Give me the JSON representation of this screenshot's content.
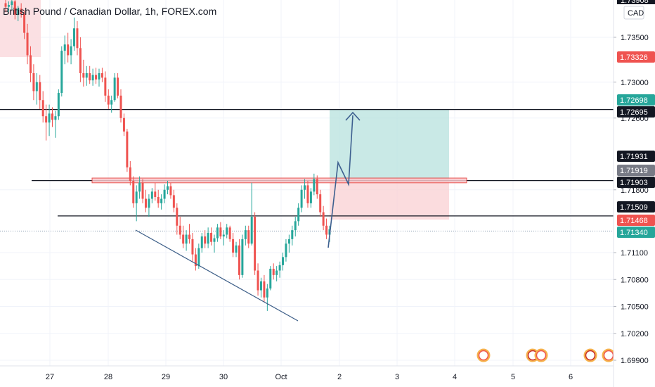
{
  "header": {
    "symbol_title": "British Pound / Canadian Dollar, 1h, FOREX.com",
    "currency": "CAD"
  },
  "colors": {
    "up": "#26a69a",
    "down": "#ef5350",
    "black": "#131722",
    "blue": "#3d5f8f",
    "target_zone": "#b7e1dd",
    "stop_zone": "#f9d0d3"
  },
  "price_axis": {
    "ticks": [
      "1.73500",
      "1.73000",
      "1.72600",
      "1.71800",
      "1.71100",
      "1.70800",
      "1.70500",
      "1.70200",
      "1.69900"
    ],
    "top_partial": "1.73908",
    "badges": [
      {
        "label": "1.73326",
        "color": "#ef5350"
      },
      {
        "label": "1.72698",
        "color": "#26a69a"
      },
      {
        "label": "1.72695",
        "color": "#131722"
      },
      {
        "label": "1.71931",
        "color": "#131722"
      },
      {
        "label": "1.71919",
        "color": "#787b86"
      },
      {
        "label": "1.71903",
        "color": "#131722"
      },
      {
        "label": "1.71509",
        "color": "#131722"
      },
      {
        "label": "1.71468",
        "color": "#ef5350"
      },
      {
        "label": "1.71340",
        "color": "#26a69a"
      }
    ]
  },
  "time_axis": {
    "labels": [
      "27",
      "28",
      "29",
      "30",
      "Oct",
      "2",
      "3",
      "4",
      "5",
      "6"
    ]
  },
  "chart_data": {
    "type": "candlestick",
    "title": "British Pound / Canadian Dollar, 1h, FOREX.com",
    "y_unit": "CAD",
    "ylim": [
      1.6985,
      1.7394
    ],
    "x_labels": [
      "27",
      "28",
      "29",
      "30",
      "Oct",
      "2",
      "3",
      "4",
      "5",
      "6"
    ],
    "candles": [
      [
        1.7388,
        1.7392,
        1.7378,
        1.7384
      ],
      [
        1.7384,
        1.739,
        1.7378,
        1.7386
      ],
      [
        1.7386,
        1.7394,
        1.738,
        1.739
      ],
      [
        1.739,
        1.7394,
        1.737,
        1.7375
      ],
      [
        1.7375,
        1.7385,
        1.7368,
        1.7382
      ],
      [
        1.7382,
        1.7388,
        1.7372,
        1.7376
      ],
      [
        1.7376,
        1.738,
        1.7348,
        1.7355
      ],
      [
        1.7355,
        1.7365,
        1.732,
        1.733
      ],
      [
        1.733,
        1.734,
        1.73,
        1.731
      ],
      [
        1.731,
        1.732,
        1.728,
        1.729
      ],
      [
        1.729,
        1.731,
        1.7275,
        1.73
      ],
      [
        1.73,
        1.7308,
        1.727,
        1.728
      ],
      [
        1.728,
        1.729,
        1.7255,
        1.7262
      ],
      [
        1.7262,
        1.7275,
        1.7235,
        1.7255
      ],
      [
        1.7255,
        1.7275,
        1.724,
        1.7265
      ],
      [
        1.7265,
        1.7272,
        1.725,
        1.7258
      ],
      [
        1.7258,
        1.7268,
        1.7238,
        1.7262
      ],
      [
        1.7262,
        1.7292,
        1.7258,
        1.7288
      ],
      [
        1.7288,
        1.734,
        1.7284,
        1.7335
      ],
      [
        1.7335,
        1.7352,
        1.732,
        1.7342
      ],
      [
        1.7342,
        1.7355,
        1.7322,
        1.733
      ],
      [
        1.733,
        1.7348,
        1.732,
        1.734
      ],
      [
        1.734,
        1.7372,
        1.7335,
        1.736
      ],
      [
        1.736,
        1.7368,
        1.733,
        1.7338
      ],
      [
        1.7338,
        1.735,
        1.73,
        1.731
      ],
      [
        1.731,
        1.7325,
        1.7295,
        1.7305
      ],
      [
        1.7305,
        1.7318,
        1.7296,
        1.731
      ],
      [
        1.731,
        1.7318,
        1.7298,
        1.7302
      ],
      [
        1.7302,
        1.7315,
        1.7296,
        1.7308
      ],
      [
        1.7308,
        1.7316,
        1.7298,
        1.7303
      ],
      [
        1.7303,
        1.7315,
        1.7295,
        1.731
      ],
      [
        1.731,
        1.7316,
        1.73,
        1.7305
      ],
      [
        1.7305,
        1.7312,
        1.7278,
        1.7285
      ],
      [
        1.7285,
        1.7292,
        1.727,
        1.7275
      ],
      [
        1.7275,
        1.7285,
        1.7266,
        1.728
      ],
      [
        1.728,
        1.731,
        1.7278,
        1.7305
      ],
      [
        1.7305,
        1.731,
        1.7282,
        1.7285
      ],
      [
        1.7285,
        1.7292,
        1.7255,
        1.726
      ],
      [
        1.726,
        1.7265,
        1.724,
        1.7245
      ],
      [
        1.7245,
        1.7248,
        1.72,
        1.7205
      ],
      [
        1.7205,
        1.7212,
        1.7185,
        1.719
      ],
      [
        1.719,
        1.7195,
        1.716,
        1.7165
      ],
      [
        1.7165,
        1.7185,
        1.7145,
        1.7178
      ],
      [
        1.7178,
        1.7195,
        1.717,
        1.7188
      ],
      [
        1.7188,
        1.7192,
        1.7165,
        1.717
      ],
      [
        1.717,
        1.718,
        1.7155,
        1.716
      ],
      [
        1.716,
        1.7175,
        1.715,
        1.717
      ],
      [
        1.717,
        1.7182,
        1.7165,
        1.7178
      ],
      [
        1.7178,
        1.7188,
        1.7168,
        1.7172
      ],
      [
        1.7172,
        1.718,
        1.716,
        1.7165
      ],
      [
        1.7165,
        1.7175,
        1.7158,
        1.717
      ],
      [
        1.717,
        1.7186,
        1.7165,
        1.718
      ],
      [
        1.718,
        1.719,
        1.7175,
        1.7184
      ],
      [
        1.7184,
        1.7188,
        1.717,
        1.7174
      ],
      [
        1.7174,
        1.718,
        1.7155,
        1.716
      ],
      [
        1.716,
        1.7165,
        1.713,
        1.714
      ],
      [
        1.714,
        1.715,
        1.7125,
        1.713
      ],
      [
        1.713,
        1.714,
        1.7115,
        1.712
      ],
      [
        1.712,
        1.7135,
        1.7112,
        1.713
      ],
      [
        1.713,
        1.7142,
        1.712,
        1.7125
      ],
      [
        1.7125,
        1.7132,
        1.71,
        1.7108
      ],
      [
        1.7108,
        1.7115,
        1.709,
        1.7095
      ],
      [
        1.7095,
        1.712,
        1.7092,
        1.7115
      ],
      [
        1.7115,
        1.7132,
        1.711,
        1.7128
      ],
      [
        1.7128,
        1.7135,
        1.7115,
        1.712
      ],
      [
        1.712,
        1.7138,
        1.7115,
        1.7132
      ],
      [
        1.7132,
        1.7138,
        1.7118,
        1.7122
      ],
      [
        1.7122,
        1.713,
        1.711,
        1.7126
      ],
      [
        1.7126,
        1.7142,
        1.7122,
        1.7138
      ],
      [
        1.7138,
        1.7144,
        1.7125,
        1.7128
      ],
      [
        1.7128,
        1.7135,
        1.7118,
        1.713
      ],
      [
        1.713,
        1.7142,
        1.7126,
        1.7138
      ],
      [
        1.7138,
        1.714,
        1.7122,
        1.7125
      ],
      [
        1.7125,
        1.7132,
        1.7105,
        1.711
      ],
      [
        1.711,
        1.7122,
        1.7105,
        1.7118
      ],
      [
        1.7118,
        1.7125,
        1.708,
        1.7085
      ],
      [
        1.7085,
        1.713,
        1.7082,
        1.7125
      ],
      [
        1.7125,
        1.714,
        1.7118,
        1.7135
      ],
      [
        1.7135,
        1.714,
        1.7115,
        1.712
      ],
      [
        1.712,
        1.7188,
        1.7118,
        1.715
      ],
      [
        1.715,
        1.7155,
        1.7085,
        1.709
      ],
      [
        1.709,
        1.7098,
        1.7062,
        1.7068
      ],
      [
        1.7068,
        1.7082,
        1.706,
        1.7078
      ],
      [
        1.7078,
        1.7085,
        1.7055,
        1.706
      ],
      [
        1.706,
        1.7075,
        1.7045,
        1.707
      ],
      [
        1.707,
        1.7095,
        1.7068,
        1.7092
      ],
      [
        1.7092,
        1.7098,
        1.708,
        1.7085
      ],
      [
        1.7085,
        1.7095,
        1.7078,
        1.709
      ],
      [
        1.709,
        1.71,
        1.7082,
        1.7096
      ],
      [
        1.7096,
        1.711,
        1.709,
        1.7105
      ],
      [
        1.7105,
        1.7125,
        1.71,
        1.712
      ],
      [
        1.712,
        1.713,
        1.711,
        1.7125
      ],
      [
        1.7125,
        1.714,
        1.7118,
        1.7135
      ],
      [
        1.7135,
        1.715,
        1.7128,
        1.7145
      ],
      [
        1.7145,
        1.7165,
        1.714,
        1.716
      ],
      [
        1.716,
        1.7185,
        1.7155,
        1.718
      ],
      [
        1.718,
        1.7192,
        1.717,
        1.7185
      ],
      [
        1.7185,
        1.719,
        1.716,
        1.7165
      ],
      [
        1.7165,
        1.7182,
        1.716,
        1.7178
      ],
      [
        1.7178,
        1.7198,
        1.7174,
        1.7192
      ],
      [
        1.7192,
        1.7196,
        1.717,
        1.7175
      ],
      [
        1.7175,
        1.718,
        1.715,
        1.7155
      ],
      [
        1.7155,
        1.7162,
        1.7135,
        1.714
      ],
      [
        1.714,
        1.7148,
        1.7125,
        1.713
      ],
      [
        1.713,
        1.714,
        1.7122,
        1.7136
      ]
    ],
    "horizontal_lines": [
      1.72695,
      1.71903,
      1.71509
    ],
    "last_price": 1.7134,
    "resistance_zone": [
      1.71878,
      1.71931
    ],
    "trade": {
      "entry": 1.71919,
      "target": 1.72698,
      "stop": 1.71468
    }
  }
}
